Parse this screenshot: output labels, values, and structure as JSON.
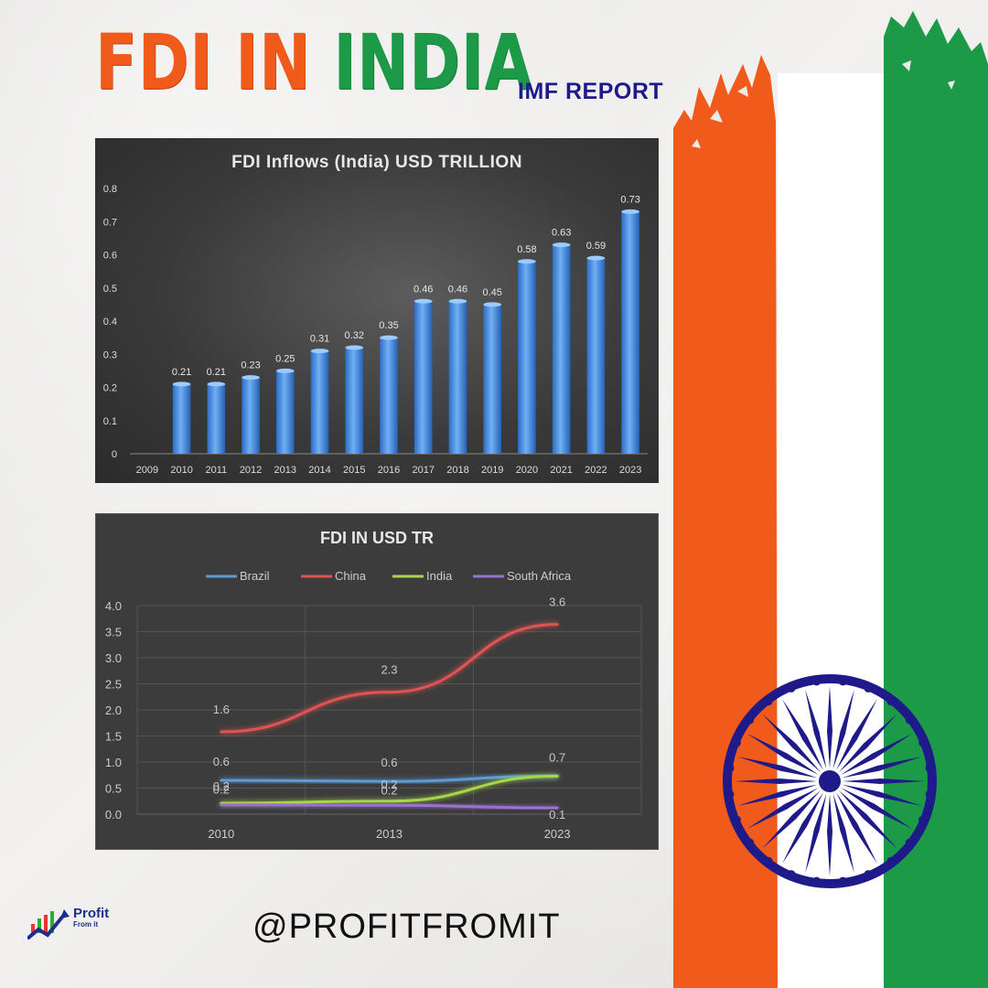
{
  "header": {
    "title_part1": "FDI IN",
    "title_part2": "INDIA",
    "subtitle": "IMF REPORT"
  },
  "footer": {
    "handle": "@PROFITFROMIT",
    "logo_name": "Profit",
    "logo_sub": "From it"
  },
  "colors": {
    "saffron": "#f05a1a",
    "green": "#1c9a48",
    "navy": "#1f1a8a",
    "bar": "#4a8fe0"
  },
  "chart_data": [
    {
      "type": "bar",
      "title": "FDI Inflows (India) USD TRILLION",
      "categories": [
        "2009",
        "2010",
        "2011",
        "2012",
        "2013",
        "2014",
        "2015",
        "2016",
        "2017",
        "2018",
        "2019",
        "2020",
        "2021",
        "2022",
        "2023"
      ],
      "values": [
        null,
        0.21,
        0.21,
        0.23,
        0.25,
        0.31,
        0.32,
        0.35,
        0.46,
        0.46,
        0.45,
        0.58,
        0.63,
        0.59,
        0.73
      ],
      "data_labels": [
        "",
        "0.21",
        "0.21",
        "0.23",
        "0.25",
        "0.31",
        "0.32",
        "0.35",
        "0.46",
        "0.46",
        "0.45",
        "0.58",
        "0.63",
        "0.59",
        "0.73"
      ],
      "yticks": [
        "0",
        "0.1",
        "0.2",
        "0.3",
        "0.4",
        "0.5",
        "0.6",
        "0.7",
        "0.8"
      ],
      "ylim": [
        0,
        0.8
      ],
      "grid": false
    },
    {
      "type": "line",
      "title": "FDI IN USD TR",
      "x": [
        "2010",
        "2013",
        "2023"
      ],
      "yticks": [
        "0.0",
        "0.5",
        "1.0",
        "1.5",
        "2.0",
        "2.5",
        "3.0",
        "3.5",
        "4.0"
      ],
      "ylim": [
        0,
        4
      ],
      "legend_position": "top",
      "grid": true,
      "series": [
        {
          "name": "Brazil",
          "color": "#5b9bd5",
          "values": [
            0.65,
            0.63,
            0.73
          ],
          "labels": [
            "0.6",
            "0.6",
            ""
          ]
        },
        {
          "name": "China",
          "color": "#e05252",
          "values": [
            1.58,
            2.34,
            3.64
          ],
          "labels": [
            "1.6",
            "2.3",
            "3.6"
          ]
        },
        {
          "name": "India",
          "color": "#a6d64a",
          "values": [
            0.21,
            0.25,
            0.73
          ],
          "labels": [
            "0.2",
            "0.2",
            "0.7"
          ]
        },
        {
          "name": "South Africa",
          "color": "#9b6fd4",
          "values": [
            0.18,
            0.17,
            0.12
          ],
          "labels": [
            "0.2",
            "0.2",
            "0.1"
          ]
        }
      ]
    }
  ]
}
